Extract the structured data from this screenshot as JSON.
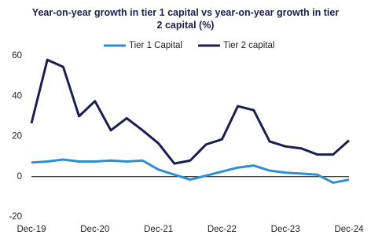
{
  "chart_data": {
    "type": "line",
    "title": "Year-on-year growth in tier 1 capital vs year-on-year growth in tier 2 capital (%)",
    "categories": [
      "Dec-19",
      null,
      null,
      null,
      "Dec-20",
      null,
      null,
      null,
      "Dec-21",
      null,
      null,
      null,
      "Dec-22",
      null,
      null,
      null,
      "Dec-23",
      null,
      null,
      null,
      "Dec-24"
    ],
    "series": [
      {
        "name": "Tier 1 Capital",
        "color": "#2e8ecf",
        "values": [
          7,
          7.5,
          8.5,
          7.5,
          7.5,
          8,
          7.5,
          8,
          3.5,
          1,
          -1.5,
          0.5,
          2.5,
          4.5,
          5.5,
          3,
          2,
          1.5,
          1,
          -3,
          -1.5
        ]
      },
      {
        "name": "Tier 2 capital",
        "color": "#1a1f4f",
        "values": [
          26.5,
          58,
          54.5,
          30,
          37.5,
          23,
          29,
          23,
          16.5,
          6.5,
          8,
          16,
          18.5,
          35,
          33,
          17.5,
          15,
          14,
          11,
          11,
          18
        ]
      }
    ],
    "ylim": [
      -20,
      60
    ],
    "yticks": [
      -20,
      0,
      20,
      40,
      60
    ],
    "grid": false,
    "legend": "top"
  }
}
